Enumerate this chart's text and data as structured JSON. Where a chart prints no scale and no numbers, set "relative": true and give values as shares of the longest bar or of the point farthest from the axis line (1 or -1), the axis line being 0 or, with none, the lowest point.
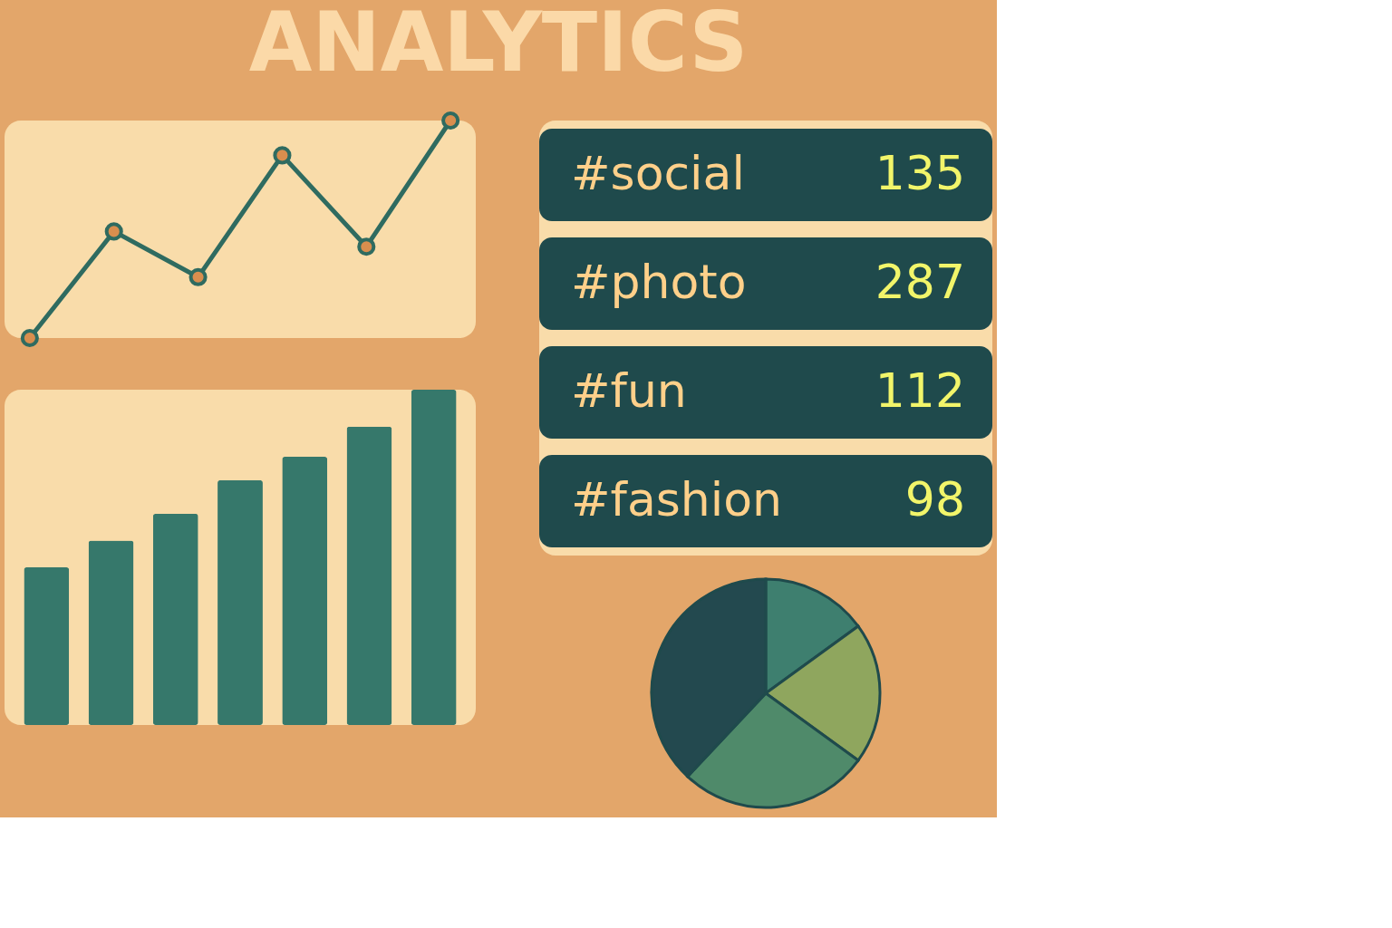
{
  "chart_data": [
    {
      "type": "line",
      "title": "ANALYTICS",
      "relative": true,
      "categories": [
        null,
        null,
        null,
        null,
        null,
        null
      ],
      "marker": "circle",
      "series": [
        {
          "color": "#2f6b60",
          "values": [
            0,
            0.49,
            0.28,
            0.84,
            0.42,
            1
          ]
        }
      ]
    },
    {
      "type": "bar",
      "relative": true,
      "categories": [
        null,
        null,
        null,
        null,
        null,
        null,
        null
      ],
      "series": [
        {
          "color": "#36786b",
          "values": [
            0.47,
            0.55,
            0.63,
            0.73,
            0.8,
            0.89,
            1
          ]
        }
      ]
    },
    {
      "type": "other",
      "categories": [
        "#social",
        "#photo",
        "#fun",
        "#fashion"
      ],
      "values": [
        135,
        287,
        112,
        98
      ],
      "data_labels": true
    },
    {
      "type": "pie",
      "categories": [
        null,
        null,
        null,
        null
      ],
      "values": [
        15,
        20,
        27,
        38
      ],
      "colors": [
        "#3e7f6f",
        "#8fa65e",
        "#4f8a6a",
        "#23494f"
      ]
    }
  ]
}
